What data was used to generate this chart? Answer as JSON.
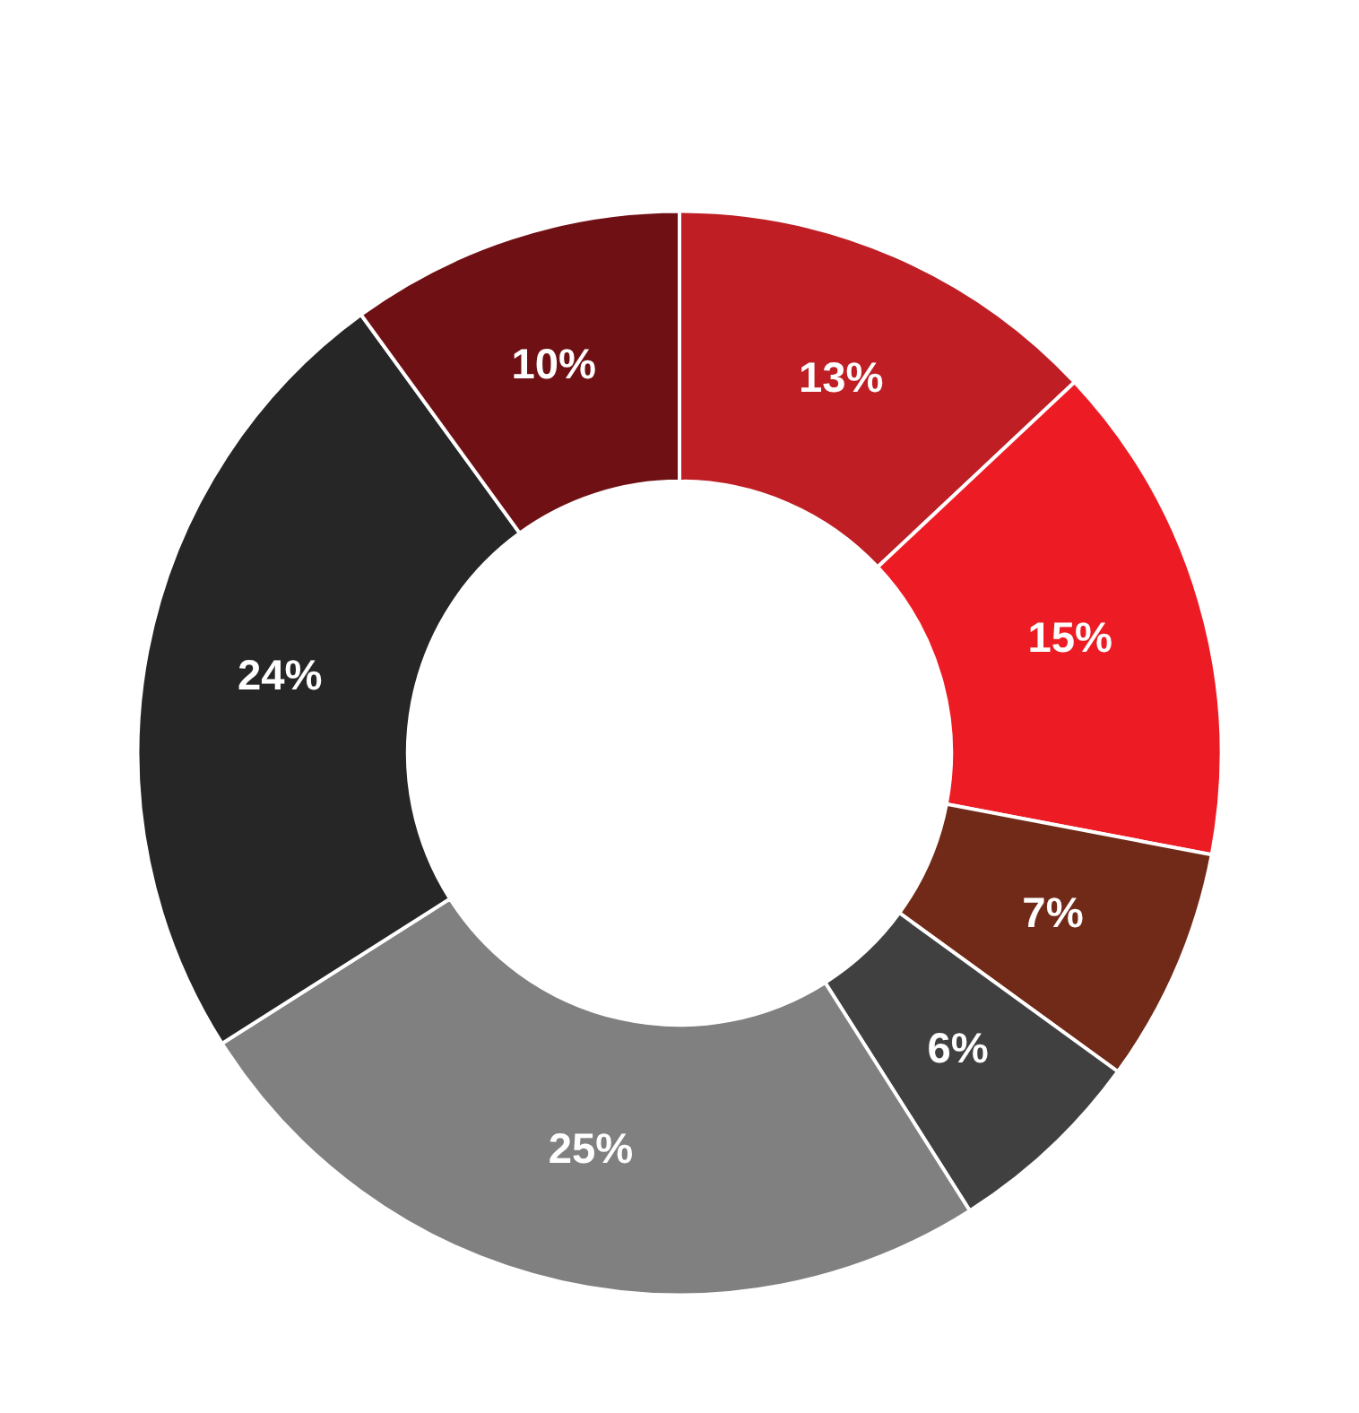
{
  "chart_data": {
    "type": "donut",
    "categories": [
      null,
      null,
      null,
      null,
      null,
      null,
      null
    ],
    "values": [
      13,
      15,
      7,
      6,
      25,
      24,
      10
    ],
    "colors": [
      "#be1e24",
      "#ed1c24",
      "#702a17",
      "#404040",
      "#808080",
      "#262626",
      "#6f1014"
    ],
    "value_labels": [
      "13%",
      "15%",
      "7%",
      "6%",
      "25%",
      "24%",
      "10%"
    ]
  }
}
